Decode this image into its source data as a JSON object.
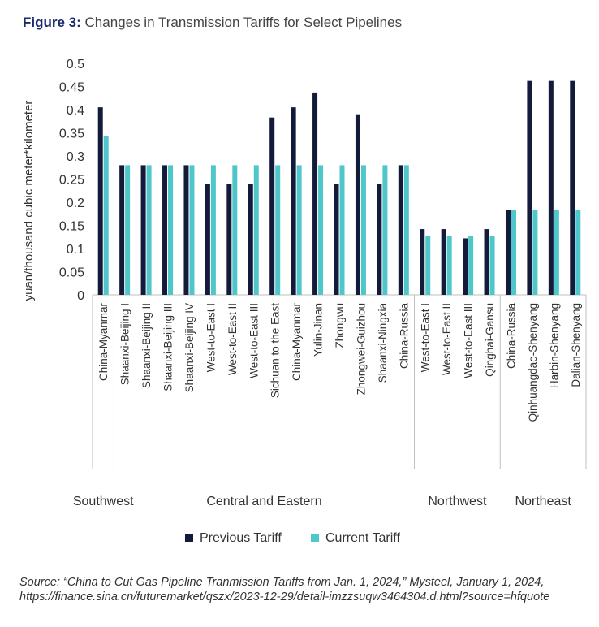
{
  "figure": {
    "label": "Figure 3:",
    "title": "Changes in Transmission Tariffs for Select Pipelines"
  },
  "source": "Source: “China to Cut Gas Pipeline Tranmission Tariffs from Jan. 1, 2024,” Mysteel, January 1, 2024, https://finance.sina.cn/futuremarket/qszx/2023-12-29/detail-imzzsuqw3464304.d.html?source=hfquote",
  "colors": {
    "previous": "#141a3a",
    "current": "#4fc6c9"
  },
  "chart_data": {
    "type": "bar",
    "ylabel": "yuan/thousand cubic meter*kilometer",
    "ylim": [
      0,
      0.5
    ],
    "yticks": [
      "0",
      "0.05",
      "0.1",
      "0.15",
      "0.2",
      "0.25",
      "0.3",
      "0.35",
      "0.4",
      "0.45",
      "0.5"
    ],
    "grid": false,
    "legend_position": "bottom",
    "categories": [
      "China-Myanmar",
      "Shaanxi-Beijing I",
      "Shaanxi-Beijing II",
      "Shaanxi-Beijing III",
      "Shaanxi-Beijing IV",
      "West-to-East I",
      "West-to-East II",
      "West-to-East III",
      "Sichuan to the East",
      "China-Myanmar",
      "Yulin-Jinan",
      "Zhongwu",
      "Zhongwei-Guizhou",
      "Shaanxi-Ningxia",
      "China-Russia",
      "West-to-East I",
      "West-to-East II",
      "West-to-East III",
      "Qinghai-Gansu",
      "China-Russia",
      "Qinhuangdao-Shenyang",
      "Harbin-Shenyang",
      "Dalian-Shenyang"
    ],
    "groups": [
      {
        "name": "Southwest",
        "count": 1
      },
      {
        "name": "Central and Eastern",
        "count": 14
      },
      {
        "name": "Northwest",
        "count": 4
      },
      {
        "name": "Northeast",
        "count": 4
      }
    ],
    "series": [
      {
        "name": "Previous Tariff",
        "values": [
          0.405,
          0.28,
          0.28,
          0.28,
          0.28,
          0.24,
          0.24,
          0.24,
          0.383,
          0.405,
          0.437,
          0.24,
          0.39,
          0.24,
          0.28,
          0.142,
          0.142,
          0.122,
          0.142,
          0.184,
          0.462,
          0.462,
          0.462
        ]
      },
      {
        "name": "Current Tariff",
        "values": [
          0.343,
          0.28,
          0.28,
          0.28,
          0.28,
          0.28,
          0.28,
          0.28,
          0.28,
          0.28,
          0.28,
          0.28,
          0.28,
          0.28,
          0.28,
          0.128,
          0.128,
          0.128,
          0.128,
          0.184,
          0.184,
          0.184,
          0.184
        ]
      }
    ]
  }
}
